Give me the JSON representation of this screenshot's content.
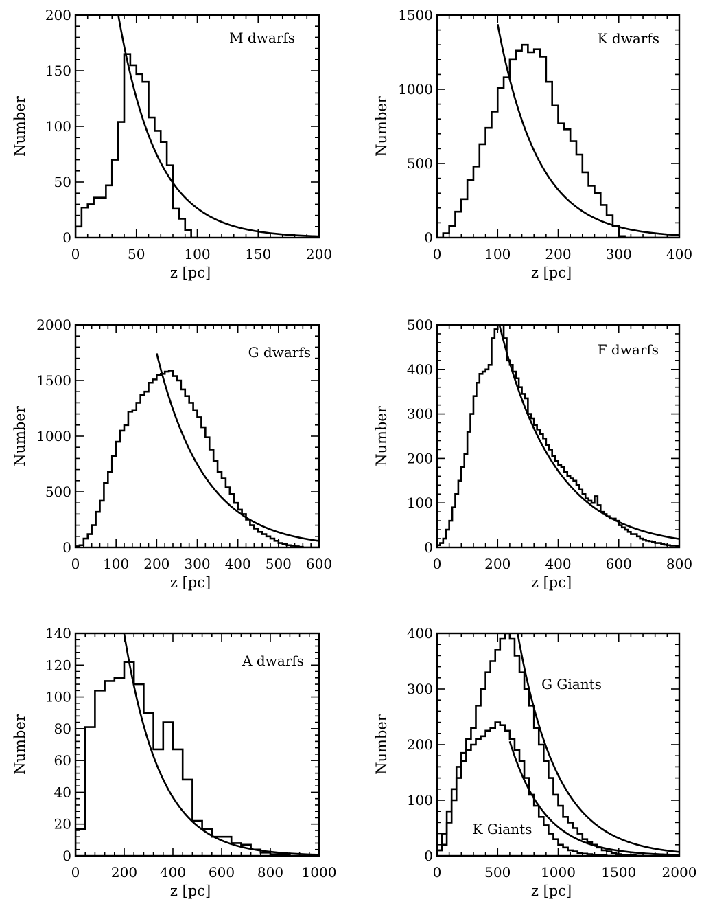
{
  "figure": {
    "description_text": "Six-panel figure of vertical distance distributions"
  },
  "chart_data": [
    {
      "type": "histogram+line",
      "label": "M dwarfs",
      "xlabel": "z [pc]",
      "ylabel": "Number",
      "xlim": [
        0,
        200
      ],
      "ylim": [
        0,
        200
      ],
      "xticks": [
        0,
        50,
        100,
        150,
        200
      ],
      "yticks": [
        0,
        50,
        100,
        150,
        200
      ],
      "xminor": 10,
      "yminor": 10,
      "hist": [
        {
          "name": "M dwarfs",
          "bin_width": 5,
          "x0": 0,
          "values": [
            10,
            27,
            30,
            36,
            36,
            47,
            70,
            104,
            165,
            155,
            147,
            140,
            108,
            96,
            86,
            65,
            26,
            17,
            7,
            0
          ]
        }
      ],
      "curve": [
        {
          "name": "exponential fit",
          "N0": 600,
          "scale_height": 32,
          "x_start": 30,
          "x_end": 200
        }
      ]
    },
    {
      "type": "histogram+line",
      "label": "K dwarfs",
      "xlabel": "z [pc]",
      "ylabel": "Number",
      "xlim": [
        0,
        400
      ],
      "ylim": [
        0,
        1500
      ],
      "xticks": [
        0,
        100,
        200,
        300,
        400
      ],
      "yticks": [
        0,
        500,
        1000,
        1500
      ],
      "xminor": 20,
      "yminor": 100,
      "hist": [
        {
          "name": "K dwarfs",
          "bin_width": 10,
          "x0": 0,
          "values": [
            0,
            30,
            80,
            175,
            260,
            390,
            480,
            630,
            740,
            850,
            1010,
            1080,
            1200,
            1260,
            1300,
            1250,
            1270,
            1220,
            1050,
            890,
            770,
            730,
            650,
            560,
            440,
            350,
            300,
            220,
            150,
            80,
            10,
            0,
            0,
            0,
            0,
            0,
            0,
            0,
            0,
            0
          ]
        }
      ],
      "curve": [
        {
          "name": "exponential fit",
          "N0": 6400,
          "scale_height": 67,
          "x_start": 100,
          "x_end": 400
        }
      ]
    },
    {
      "type": "histogram+line",
      "label": "G dwarfs",
      "xlabel": "z [pc]",
      "ylabel": "Number",
      "xlim": [
        0,
        600
      ],
      "ylim": [
        0,
        2000
      ],
      "xticks": [
        0,
        100,
        200,
        300,
        400,
        500,
        600
      ],
      "yticks": [
        0,
        500,
        1000,
        1500,
        2000
      ],
      "xminor": 20,
      "yminor": 100,
      "hist": [
        {
          "name": "G dwarfs",
          "bin_width": 10,
          "x0": 0,
          "values": [
            10,
            20,
            80,
            120,
            200,
            320,
            420,
            580,
            680,
            820,
            950,
            1050,
            1100,
            1220,
            1230,
            1300,
            1370,
            1400,
            1480,
            1510,
            1550,
            1560,
            1580,
            1590,
            1540,
            1500,
            1420,
            1360,
            1300,
            1230,
            1170,
            1080,
            990,
            880,
            780,
            680,
            620,
            540,
            480,
            400,
            340,
            300,
            250,
            200,
            170,
            140,
            120,
            100,
            80,
            60,
            40,
            30,
            20,
            15,
            10,
            5,
            0,
            0,
            0,
            0
          ]
        }
      ],
      "curve": [
        {
          "name": "exponential fit",
          "N0": 9500,
          "scale_height": 118,
          "x_start": 200,
          "x_end": 600
        }
      ]
    },
    {
      "type": "histogram+line",
      "label": "F dwarfs",
      "xlabel": "z [pc]",
      "ylabel": "Number",
      "xlim": [
        0,
        800
      ],
      "ylim": [
        0,
        500
      ],
      "xticks": [
        0,
        200,
        400,
        600,
        800
      ],
      "yticks": [
        0,
        100,
        200,
        300,
        400,
        500
      ],
      "xminor": 40,
      "yminor": 20,
      "hist": [
        {
          "name": "F dwarfs",
          "bin_width": 10,
          "x0": 0,
          "values": [
            5,
            10,
            20,
            40,
            60,
            90,
            120,
            150,
            180,
            210,
            260,
            300,
            340,
            370,
            390,
            395,
            400,
            410,
            470,
            490,
            500,
            500,
            470,
            420,
            410,
            395,
            380,
            360,
            345,
            335,
            300,
            290,
            275,
            265,
            255,
            245,
            230,
            220,
            205,
            195,
            185,
            180,
            170,
            160,
            155,
            150,
            140,
            130,
            120,
            110,
            105,
            100,
            115,
            95,
            80,
            75,
            70,
            65,
            65,
            60,
            50,
            45,
            40,
            35,
            30,
            30,
            25,
            20,
            18,
            15,
            14,
            12,
            10,
            10,
            8,
            6,
            5,
            4,
            4,
            3
          ]
        }
      ],
      "curve": [
        {
          "name": "exponential fit",
          "N0": 1550,
          "scale_height": 182,
          "x_start": 190,
          "x_end": 800
        }
      ]
    },
    {
      "type": "histogram+line",
      "label": "A dwarfs",
      "xlabel": "z [pc]",
      "ylabel": "Number",
      "xlim": [
        0,
        1000
      ],
      "ylim": [
        0,
        140
      ],
      "xticks": [
        0,
        200,
        400,
        600,
        800,
        1000
      ],
      "yticks": [
        0,
        20,
        40,
        60,
        80,
        100,
        120,
        140
      ],
      "xminor": 40,
      "yminor": 4,
      "hist": [
        {
          "name": "A dwarfs",
          "bin_width": 40,
          "x0": 0,
          "values": [
            17,
            81,
            104,
            110,
            112,
            122,
            108,
            90,
            67,
            84,
            67,
            48,
            22,
            17,
            12,
            12,
            8,
            7,
            4,
            2,
            1,
            1,
            0,
            0,
            0
          ]
        }
      ],
      "curve": [
        {
          "name": "exponential fit",
          "N0": 530,
          "scale_height": 150,
          "x_start": 200,
          "x_end": 1000
        }
      ]
    },
    {
      "type": "histogram+line",
      "label": "",
      "series_labels": [
        "G Giants",
        "K Giants"
      ],
      "xlabel": "z [pc]",
      "ylabel": "Number",
      "xlim": [
        0,
        2000
      ],
      "ylim": [
        0,
        400
      ],
      "xticks": [
        0,
        500,
        1000,
        1500,
        2000
      ],
      "yticks": [
        0,
        100,
        200,
        300,
        400
      ],
      "xminor": 100,
      "yminor": 20,
      "hist": [
        {
          "name": "G Giants",
          "bin_width": 40,
          "x0": 0,
          "values": [
            10,
            20,
            60,
            100,
            140,
            170,
            210,
            230,
            270,
            300,
            330,
            350,
            370,
            390,
            400,
            390,
            360,
            330,
            300,
            270,
            230,
            200,
            170,
            140,
            110,
            90,
            70,
            60,
            50,
            40,
            30,
            25,
            20,
            15,
            10,
            8,
            5,
            3,
            2,
            1,
            1,
            0,
            0,
            0,
            0,
            0,
            0,
            0,
            0,
            0
          ]
        },
        {
          "name": "K Giants",
          "bin_width": 40,
          "x0": 0,
          "values": [
            10,
            40,
            80,
            120,
            160,
            185,
            190,
            200,
            210,
            215,
            225,
            230,
            240,
            235,
            225,
            210,
            190,
            170,
            140,
            110,
            90,
            70,
            55,
            40,
            30,
            20,
            15,
            10,
            8,
            5,
            4,
            3,
            2,
            1,
            1,
            0,
            0,
            0,
            0,
            0,
            0,
            0,
            0,
            0,
            0,
            0,
            0,
            0,
            0,
            0
          ]
        }
      ],
      "curve": [
        {
          "name": "G Giants fit",
          "N0": 3000,
          "scale_height": 330,
          "x_start": 650,
          "x_end": 2000
        },
        {
          "name": "K Giants fit",
          "N0": 1630,
          "scale_height": 290,
          "x_start": 600,
          "x_end": 2000
        }
      ]
    }
  ]
}
